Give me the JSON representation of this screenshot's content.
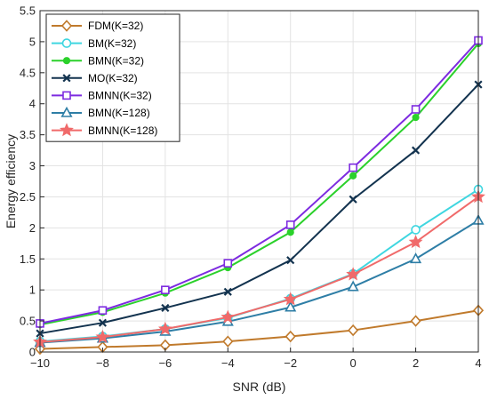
{
  "chart_data": {
    "type": "line",
    "xlabel": "SNR (dB)",
    "ylabel": "Energy efficiency",
    "xlim": [
      -10,
      4
    ],
    "ylim": [
      0,
      5.5
    ],
    "xticks": [
      "-10",
      "-8",
      "-6",
      "-4",
      "-2",
      "0",
      "2",
      "4"
    ],
    "yticks": [
      "0",
      "0.5",
      "1",
      "1.5",
      "2",
      "2.5",
      "3",
      "3.5",
      "4",
      "4.5",
      "5",
      "5.5"
    ],
    "grid": true,
    "legend_position": "top-left",
    "x": [
      -10,
      -8,
      -6,
      -4,
      -2,
      0,
      2,
      4
    ],
    "series": [
      {
        "name": "FDM(K=32)",
        "color": "#c07a2c",
        "marker": "diamond",
        "values": [
          0.05,
          0.08,
          0.11,
          0.17,
          0.25,
          0.35,
          0.5,
          0.67
        ]
      },
      {
        "name": "BM(K=32)",
        "color": "#3fd6e0",
        "marker": "circle",
        "values": [
          0.17,
          0.25,
          0.37,
          0.55,
          0.86,
          1.26,
          1.97,
          2.62
        ]
      },
      {
        "name": "BMN(K=32)",
        "color": "#2bd12b",
        "marker": "dot",
        "values": [
          0.44,
          0.64,
          0.95,
          1.36,
          1.93,
          2.84,
          3.78,
          4.97
        ]
      },
      {
        "name": "MO(K=32)",
        "color": "#13334f",
        "marker": "x",
        "values": [
          0.3,
          0.47,
          0.71,
          0.97,
          1.48,
          2.46,
          3.25,
          4.31
        ]
      },
      {
        "name": "BMNN(K=32)",
        "color": "#7d2be0",
        "marker": "square",
        "values": [
          0.46,
          0.67,
          1.0,
          1.43,
          2.05,
          2.97,
          3.91,
          5.02
        ]
      },
      {
        "name": "BMN(K=128)",
        "color": "#2e7ea6",
        "marker": "triangle",
        "values": [
          0.15,
          0.22,
          0.33,
          0.49,
          0.72,
          1.05,
          1.5,
          2.12
        ]
      },
      {
        "name": "BMNN(K=128)",
        "color": "#f06a6a",
        "marker": "star",
        "values": [
          0.16,
          0.24,
          0.37,
          0.56,
          0.85,
          1.25,
          1.77,
          2.5
        ]
      }
    ]
  }
}
